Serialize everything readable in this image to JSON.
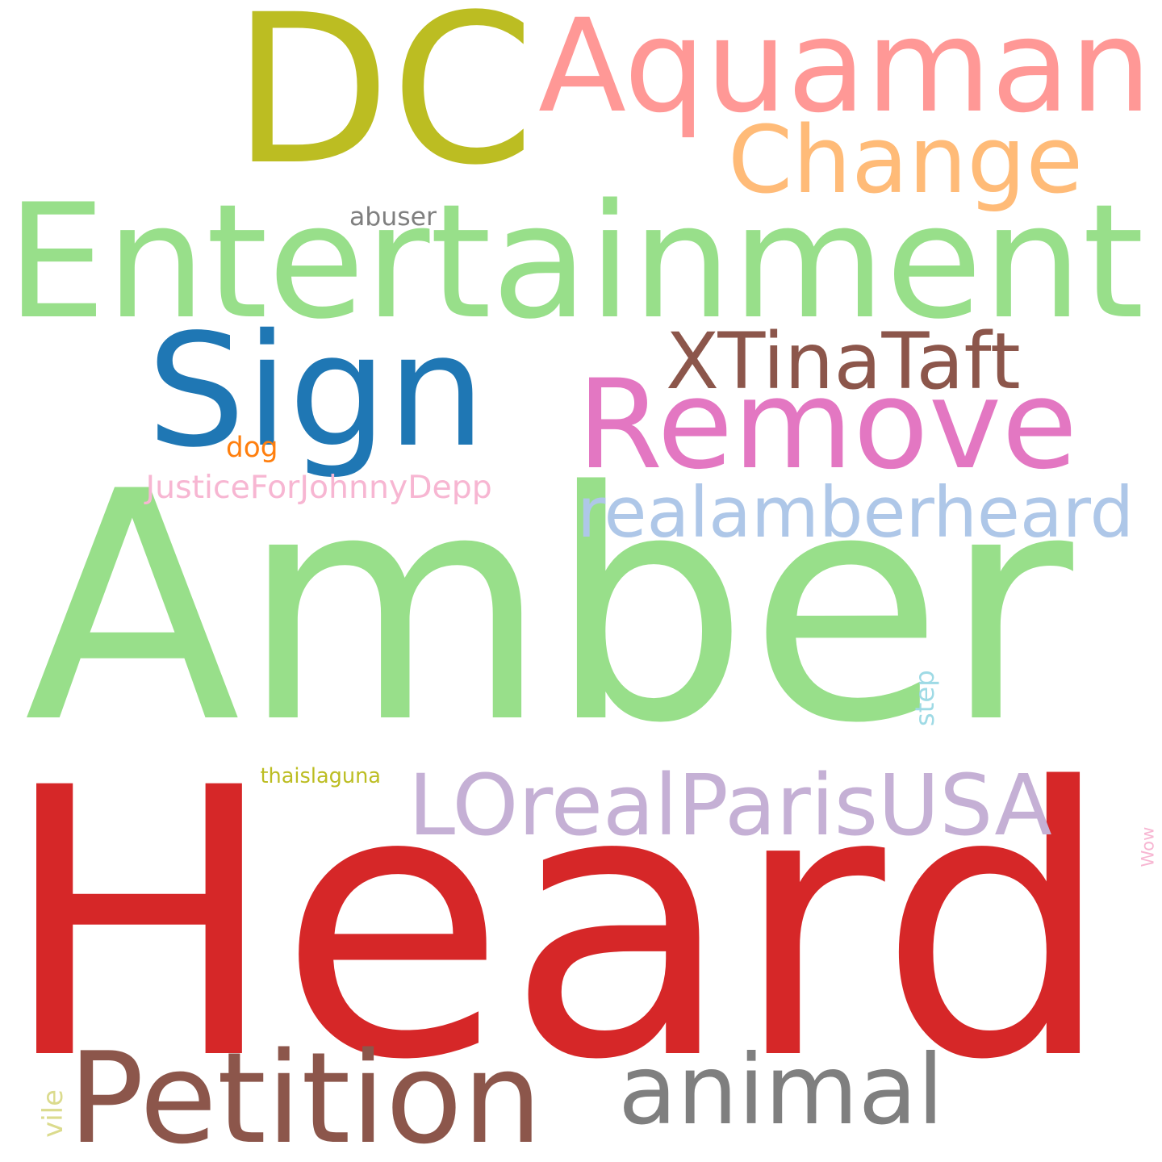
{
  "words": [
    {
      "key": "heard",
      "text": "Heard",
      "color": "#d62728"
    },
    {
      "key": "amber",
      "text": "Amber",
      "color": "#98df8a"
    },
    {
      "key": "dc",
      "text": "DC",
      "color": "#bcbd22"
    },
    {
      "key": "entertainment",
      "text": "Entertainment",
      "color": "#98df8a"
    },
    {
      "key": "aquaman",
      "text": "Aquaman",
      "color": "#ff9896"
    },
    {
      "key": "remove",
      "text": "Remove",
      "color": "#e377c2"
    },
    {
      "key": "sign",
      "text": "Sign",
      "color": "#1f77b4"
    },
    {
      "key": "petition",
      "text": "Petition",
      "color": "#8c564b"
    },
    {
      "key": "change",
      "text": "Change",
      "color": "#ffbb78"
    },
    {
      "key": "animal",
      "text": "animal",
      "color": "#7f7f7f"
    },
    {
      "key": "lorealparisusa",
      "text": "LOrealParisUSA",
      "color": "#c5b0d5"
    },
    {
      "key": "realamberheard",
      "text": "realamberheard",
      "color": "#aec7e8"
    },
    {
      "key": "xtinataft",
      "text": "XTinaTaft",
      "color": "#8c564b"
    },
    {
      "key": "justiceforjohnnydepp",
      "text": "JusticeForJohnnyDepp",
      "color": "#f7b6d2"
    },
    {
      "key": "abuser",
      "text": "abuser",
      "color": "#7f7f7f"
    },
    {
      "key": "dog",
      "text": "dog",
      "color": "#ff7f0e"
    },
    {
      "key": "thaislaguna",
      "text": "thaislaguna",
      "color": "#bcbd22"
    },
    {
      "key": "step",
      "text": "step",
      "color": "#9edae5"
    },
    {
      "key": "wow",
      "text": "Wow",
      "color": "#f7b6d2"
    },
    {
      "key": "vile",
      "text": "vile",
      "color": "#dbdb8d"
    }
  ]
}
